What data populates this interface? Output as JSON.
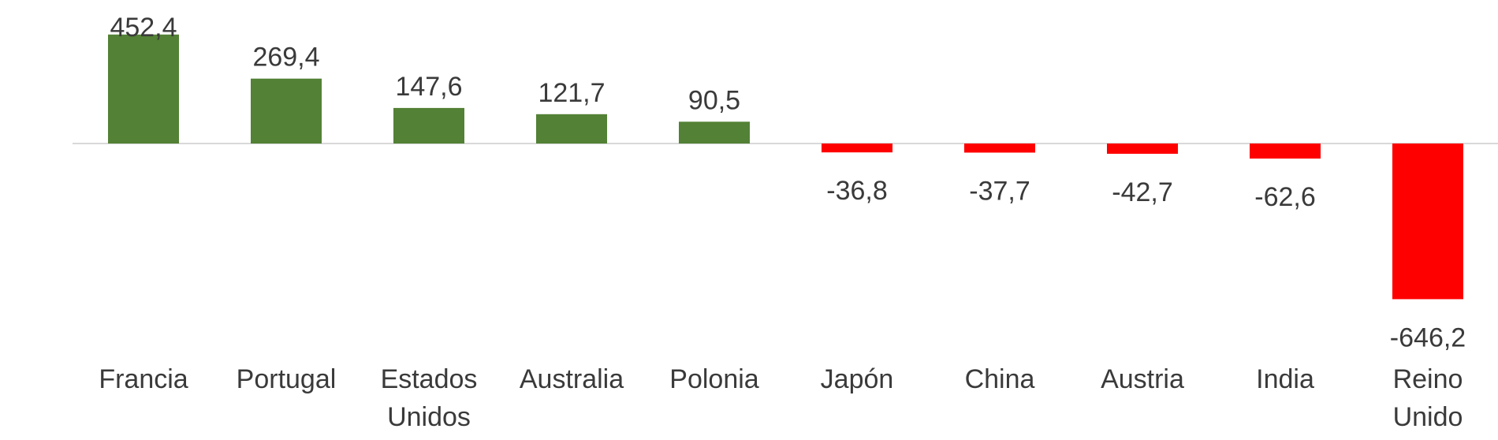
{
  "chart_data": {
    "type": "bar",
    "title": "",
    "xlabel": "",
    "ylabel": "",
    "categories": [
      "Francia",
      "Portugal",
      "Estados Unidos",
      "Australia",
      "Polonia",
      "Japón",
      "China",
      "Austria",
      "India",
      "Reino Unido"
    ],
    "category_lines": [
      [
        "Francia"
      ],
      [
        "Portugal"
      ],
      [
        "Estados",
        "Unidos"
      ],
      [
        "Australia"
      ],
      [
        "Polonia"
      ],
      [
        "Japón"
      ],
      [
        "China"
      ],
      [
        "Austria"
      ],
      [
        "India"
      ],
      [
        "Reino",
        "Unido"
      ]
    ],
    "values": [
      452.4,
      269.4,
      147.6,
      121.7,
      90.5,
      -36.8,
      -37.7,
      -42.7,
      -62.6,
      -646.2
    ],
    "value_labels": [
      "452,4",
      "269,4",
      "147,6",
      "121,7",
      "90,5",
      "-36,8",
      "-37,7",
      "-42,7",
      "-62,6",
      "-646,2"
    ],
    "ylim": [
      -660,
      470
    ],
    "grid": false,
    "legend": "none",
    "colors": {
      "positive": "#538135",
      "negative": "#ff0000",
      "baseline": "#d9d9d9",
      "text": "#3a3a3a"
    }
  }
}
